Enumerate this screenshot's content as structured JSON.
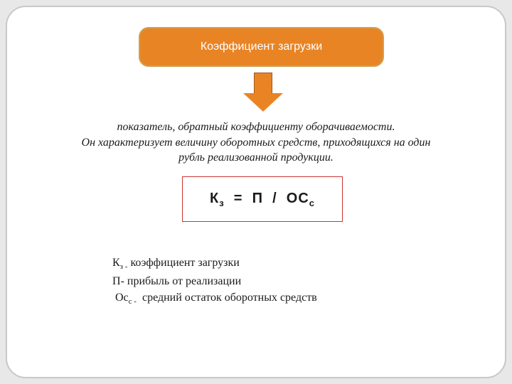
{
  "slide": {
    "background_color": "#e8e8e8",
    "frame_color": "#ffffff",
    "frame_border": "#c8c8c8",
    "frame_radius": 28
  },
  "title": {
    "text": "Коэффициент загрузки",
    "bg_color": "#e98425",
    "text_color": "#ffffff",
    "fontsize": 16
  },
  "arrow": {
    "fill_color": "#e98425",
    "border_color": "#a05818"
  },
  "description": {
    "line1": "показатель, обратный коэффициенту оборачиваемости.",
    "line2": "Он характеризует величину оборотных средств, приходящихся на один",
    "line3": "рубль реализованной продукции.",
    "fontsize": 16,
    "font_style": "italic"
  },
  "formula": {
    "lhs_base": "К",
    "lhs_sub": "з",
    "rhs_left": "П",
    "rhs_sep": "/",
    "rhs_right_base": "ОС",
    "rhs_right_sub": "с",
    "border_color": "#cc3333",
    "fontsize": 20
  },
  "legend": {
    "items": [
      {
        "sym_base": "К",
        "sym_sub": "з",
        "dash_sub": true,
        "def": "коэффициент загрузки"
      },
      {
        "sym_base": "П",
        "sym_sub": "",
        "dash_sub": false,
        "def": "прибыль от реализации"
      },
      {
        "sym_base": "Ос",
        "sym_sub": "с",
        "dash_sub": true,
        "def": "средний остаток оборотных средств",
        "indent": true
      }
    ],
    "fontsize": 16
  }
}
